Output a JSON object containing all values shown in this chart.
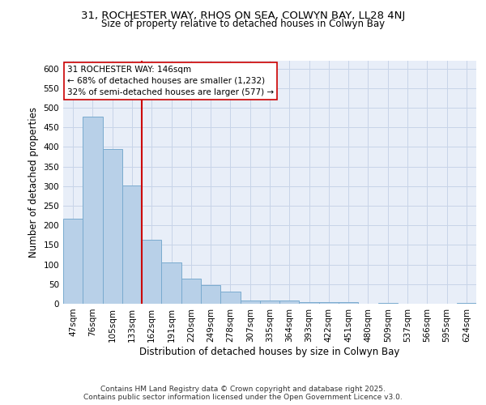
{
  "title_line1": "31, ROCHESTER WAY, RHOS ON SEA, COLWYN BAY, LL28 4NJ",
  "title_line2": "Size of property relative to detached houses in Colwyn Bay",
  "xlabel": "Distribution of detached houses by size in Colwyn Bay",
  "ylabel": "Number of detached properties",
  "categories": [
    "47sqm",
    "76sqm",
    "105sqm",
    "133sqm",
    "162sqm",
    "191sqm",
    "220sqm",
    "249sqm",
    "278sqm",
    "307sqm",
    "335sqm",
    "364sqm",
    "393sqm",
    "422sqm",
    "451sqm",
    "480sqm",
    "509sqm",
    "537sqm",
    "566sqm",
    "595sqm",
    "624sqm"
  ],
  "values": [
    218,
    478,
    395,
    302,
    163,
    105,
    65,
    47,
    31,
    9,
    9,
    9,
    5,
    5,
    5,
    0,
    3,
    0,
    0,
    0,
    3
  ],
  "bar_color": "#b8d0e8",
  "bar_edge_color": "#7aabcf",
  "vline_color": "#cc0000",
  "annotation_text": "31 ROCHESTER WAY: 146sqm\n← 68% of detached houses are smaller (1,232)\n32% of semi-detached houses are larger (577) →",
  "annotation_box_color": "#ffffff",
  "annotation_box_edgecolor": "#cc0000",
  "ylim": [
    0,
    620
  ],
  "yticks": [
    0,
    50,
    100,
    150,
    200,
    250,
    300,
    350,
    400,
    450,
    500,
    550,
    600
  ],
  "grid_color": "#c8d4e8",
  "background_color": "#e8eef8",
  "footer_text": "Contains HM Land Registry data © Crown copyright and database right 2025.\nContains public sector information licensed under the Open Government Licence v3.0.",
  "title_fontsize": 9.5,
  "subtitle_fontsize": 8.5,
  "axis_label_fontsize": 8.5,
  "tick_fontsize": 7.5,
  "footer_fontsize": 6.5,
  "annotation_fontsize": 7.5
}
